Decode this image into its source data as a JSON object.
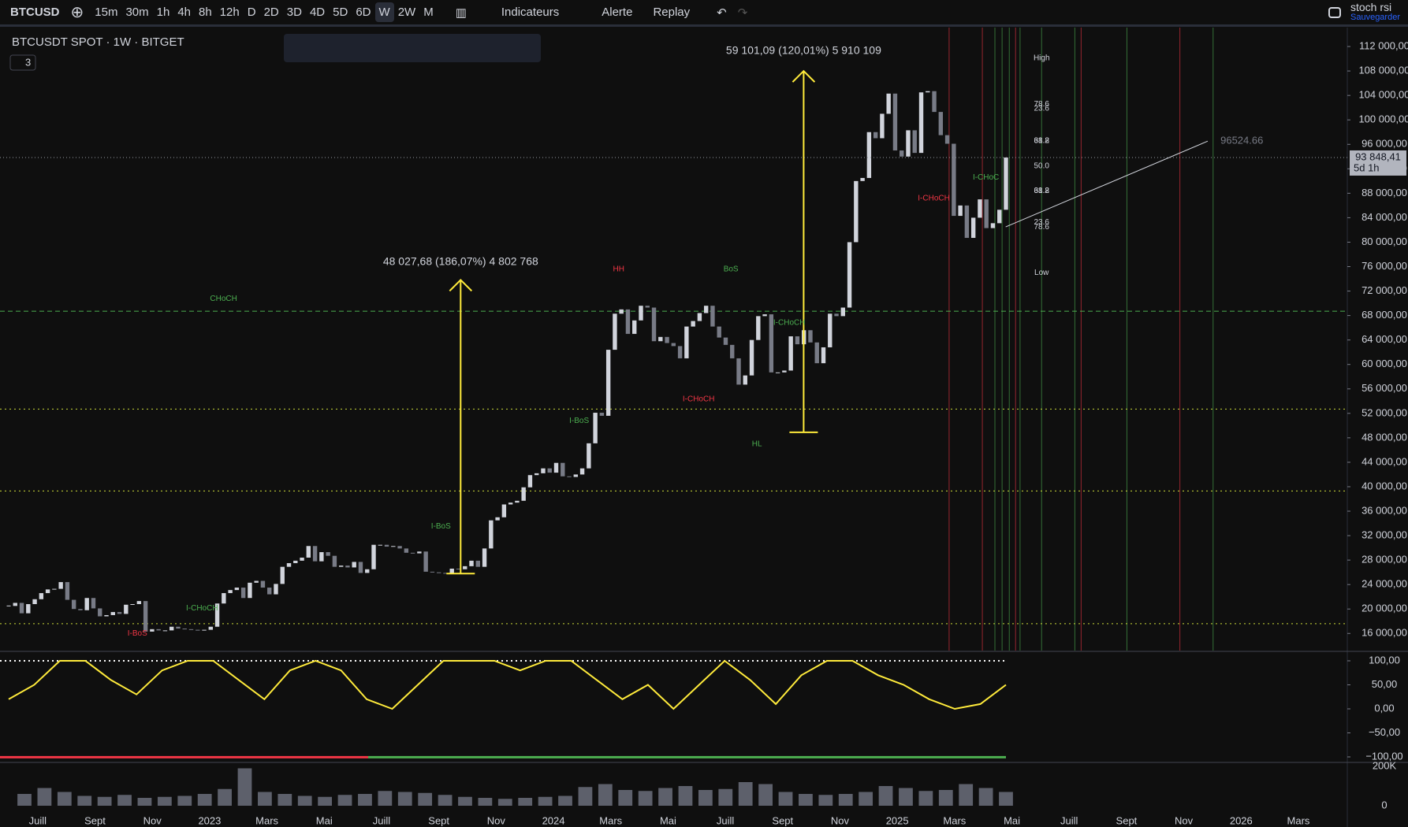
{
  "toolbar": {
    "symbol": "BTCUSD",
    "intervals": [
      "15m",
      "30m",
      "1h",
      "4h",
      "8h",
      "12h",
      "D",
      "2D",
      "3D",
      "4D",
      "5D",
      "6D",
      "W",
      "2W",
      "M"
    ],
    "active_interval": 12,
    "indicators": "Indicateurs",
    "alert": "Alerte",
    "replay": "Replay",
    "layout_name": "stoch rsi",
    "save": "Sauvegarder"
  },
  "time_axis": {
    "labels": [
      "Juill",
      "Sept",
      "Nov",
      "2023",
      "Mars",
      "Mai",
      "Juill",
      "Sept",
      "Nov",
      "2024",
      "Mars",
      "Mai",
      "Juill",
      "Sept",
      "Nov",
      "2025",
      "Mars",
      "Mai",
      "Juill",
      "Sept",
      "Nov",
      "2026",
      "Mars"
    ]
  },
  "chart_data": [
    {
      "type": "candlestick",
      "title": "BTCUSDT SPOT · 1W · BITGET",
      "legend_count": 3,
      "closes": [
        20500,
        21000,
        19300,
        20800,
        21600,
        22600,
        23200,
        23300,
        24400,
        21500,
        20000,
        19800,
        21800,
        20100,
        18800,
        19000,
        19500,
        19200,
        20700,
        20800,
        21300,
        16300,
        16700,
        16500,
        16500,
        17100,
        16800,
        16700,
        16600,
        16500,
        16600,
        17100,
        20900,
        22600,
        23100,
        23500,
        21800,
        24300,
        24600,
        23500,
        22400,
        24100,
        26900,
        27500,
        27900,
        28400,
        30300,
        27800,
        29300,
        28700,
        26900,
        27100,
        26800,
        27700,
        25900,
        26500,
        30500,
        30500,
        30200,
        30300,
        29900,
        29200,
        29100,
        29400,
        26100,
        26000,
        25900,
        25800,
        26600,
        26500,
        27000,
        27900,
        26900,
        29900,
        34500,
        35000,
        37100,
        37400,
        37700,
        39900,
        41900,
        42200,
        43000,
        42300,
        43900,
        41700,
        41600,
        42000,
        43000,
        47100,
        52100,
        51600,
        62400,
        68300,
        69000,
        65000,
        67200,
        69600,
        69300,
        63800,
        64500,
        63500,
        63000,
        61000,
        66200,
        67100,
        68400,
        69600,
        66200,
        64400,
        63200,
        61000,
        56700,
        58200,
        64000,
        67900,
        68200,
        58700,
        58700,
        59000,
        64600,
        63300,
        65600,
        63600,
        60200,
        62800,
        68300,
        67900,
        69300,
        80000,
        90000,
        90500,
        98000,
        97000,
        101000,
        104300,
        95000,
        94000,
        98300,
        94600,
        104500,
        104700,
        101300,
        97500,
        96100,
        84300,
        86000,
        80700,
        84000,
        87000,
        82300,
        83100,
        85300,
        93848.41
      ],
      "up_color": "#d1d4dc",
      "down_color": "#787b86",
      "ylim": [
        13200,
        115100
      ],
      "yticks": [
        {
          "value": 16000,
          "label": "16 000,00"
        },
        {
          "value": 20000,
          "label": "20 000,00"
        },
        {
          "value": 24000,
          "label": "24 000,00"
        },
        {
          "value": 28000,
          "label": "28 000,00"
        },
        {
          "value": 32000,
          "label": "32 000,00"
        },
        {
          "value": 36000,
          "label": "36 000,00"
        },
        {
          "value": 40000,
          "label": "40 000,00"
        },
        {
          "value": 44000,
          "label": "44 000,00"
        },
        {
          "value": 48000,
          "label": "48 000,00"
        },
        {
          "value": 52000,
          "label": "52 000,00"
        },
        {
          "value": 56000,
          "label": "56 000,00"
        },
        {
          "value": 60000,
          "label": "60 000,00"
        },
        {
          "value": 64000,
          "label": "64 000,00"
        },
        {
          "value": 68000,
          "label": "68 000,00"
        },
        {
          "value": 72000,
          "label": "72 000,00"
        },
        {
          "value": 76000,
          "label": "76 000,00"
        },
        {
          "value": 80000,
          "label": "80 000,00"
        },
        {
          "value": 84000,
          "label": "84 000,00"
        },
        {
          "value": 88000,
          "label": "88 000,00"
        },
        {
          "value": 92000,
          "label": "92 000,00"
        },
        {
          "value": 96000,
          "label": "96 000,00"
        },
        {
          "value": 100000,
          "label": "100 000,00"
        },
        {
          "value": 104000,
          "label": "104 000,00"
        },
        {
          "value": 108000,
          "label": "108 000,00"
        },
        {
          "value": 112000,
          "label": "112 000,00"
        }
      ],
      "last_price": {
        "value": 93848.41,
        "label": "93 848,41"
      },
      "countdown": "5d 1h",
      "levels": [
        {
          "value": 68700,
          "color": "#4caf50",
          "style": "dashed"
        },
        {
          "value": 52700,
          "color": "#cddc39",
          "style": "dotted"
        },
        {
          "value": 39300,
          "color": "#cddc39",
          "style": "dotted"
        },
        {
          "value": 17600,
          "color": "#cddc39",
          "style": "dotted"
        }
      ],
      "measures": [
        {
          "label": "48 027,68 (186,07%) 4 802 768",
          "from": 25800,
          "to": 73830
        },
        {
          "label": "59 101,09 (120,01%) 5 910 109",
          "from": 48900,
          "to": 108000
        }
      ],
      "trendline": {
        "from": 82500,
        "to": 96524.66
      },
      "annotations": [
        {
          "text": "CHoCH",
          "color": "#4caf50"
        },
        {
          "text": "HH",
          "color": "#f23645"
        },
        {
          "text": "BoS",
          "color": "#4caf50"
        },
        {
          "text": "I-CHoCH",
          "color": "#4caf50"
        },
        {
          "text": "I-BoS",
          "color": "#4caf50"
        },
        {
          "text": "I-CHoCH",
          "color": "#f23645"
        },
        {
          "text": "HL",
          "color": "#4caf50"
        },
        {
          "text": "I-BoS",
          "color": "#4caf50"
        },
        {
          "text": "I-CHoCH",
          "color": "#4caf50"
        },
        {
          "text": "I-BoS",
          "color": "#f23645"
        },
        {
          "text": "I-CHoC",
          "color": "#4caf50"
        },
        {
          "text": "I-CHoCH",
          "color": "#f23645"
        }
      ],
      "fib_labels": [
        "High",
        "78.6",
        "23.6",
        "61.8",
        "38.2",
        "50.0",
        "38.2",
        "61.8",
        "23.6",
        "78.6",
        "Low"
      ]
    },
    {
      "type": "line",
      "values": [
        20,
        50,
        100,
        100,
        60,
        30,
        80,
        100,
        100,
        60,
        20,
        80,
        100,
        80,
        20,
        0,
        50,
        100,
        100,
        100,
        80,
        100,
        100,
        60,
        20,
        50,
        0,
        50,
        100,
        60,
        10,
        70,
        100,
        100,
        70,
        50,
        20,
        0,
        10,
        50
      ],
      "color": "#ffeb3b",
      "ylim": [
        -100,
        100
      ],
      "yticks": [
        {
          "value": 100,
          "label": "100,00"
        },
        {
          "value": 50,
          "label": "50,00"
        },
        {
          "value": 0,
          "label": "0,00"
        },
        {
          "value": -50,
          "label": "−50,00"
        },
        {
          "value": -100,
          "label": "−100,00"
        }
      ]
    },
    {
      "type": "bar",
      "values": [
        60000,
        90000,
        70000,
        50000,
        45000,
        55000,
        40000,
        45000,
        50000,
        60000,
        85000,
        190000,
        70000,
        60000,
        50000,
        45000,
        55000,
        60000,
        75000,
        70000,
        65000,
        55000,
        45000,
        40000,
        35000,
        40000,
        45000,
        50000,
        95000,
        110000,
        80000,
        75000,
        90000,
        100000,
        80000,
        85000,
        120000,
        110000,
        70000,
        60000,
        55000,
        60000,
        70000,
        100000,
        90000,
        75000,
        80000,
        110000,
        90000,
        70000
      ],
      "color": "#5d606b",
      "ylim": [
        0,
        200000
      ],
      "yticks": [
        {
          "value": 200000,
          "label": "200K"
        },
        0
      ]
    }
  ]
}
